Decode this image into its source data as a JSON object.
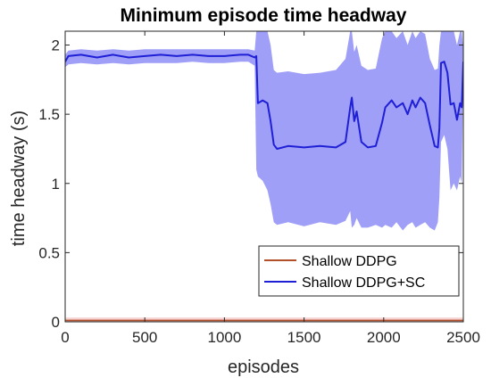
{
  "colors": {
    "series1": "#b1502a",
    "series1_band": "#f4c6c6",
    "series2": "#1f1fd6",
    "series2_band": "#7f7ff5",
    "axis": "#262626"
  },
  "chart_data": {
    "type": "line",
    "title": "Minimum episode time headway",
    "xlabel": "episodes",
    "ylabel": "time headway (s)",
    "xlim": [
      0,
      2500
    ],
    "ylim": [
      0,
      2.1
    ],
    "xticks": [
      0,
      500,
      1000,
      1500,
      2000,
      2500
    ],
    "xtick_labels": [
      "0",
      "500",
      "1000",
      "1500",
      "2000",
      "2500"
    ],
    "yticks": [
      0,
      0.5,
      1,
      1.5,
      2
    ],
    "ytick_labels": [
      "0",
      "0.5",
      "1",
      "1.5",
      "2"
    ],
    "grid": false,
    "legend_position": "lower-right",
    "series": [
      {
        "name": "Shallow DDPG",
        "x": [
          0,
          250,
          500,
          750,
          1000,
          1250,
          1500,
          1750,
          2000,
          2250,
          2500
        ],
        "values": [
          0.01,
          0.01,
          0.01,
          0.01,
          0.01,
          0.01,
          0.01,
          0.01,
          0.01,
          0.01,
          0.01
        ],
        "band_lower": [
          0.0,
          0.0,
          0.0,
          0.0,
          0.0,
          0.0,
          0.0,
          0.0,
          0.0,
          0.0,
          0.0
        ],
        "band_upper": [
          0.03,
          0.03,
          0.03,
          0.03,
          0.03,
          0.03,
          0.03,
          0.03,
          0.03,
          0.03,
          0.03
        ]
      },
      {
        "name": "Shallow DDPG+SC",
        "x": [
          0,
          20,
          100,
          200,
          300,
          400,
          500,
          600,
          700,
          800,
          900,
          1000,
          1100,
          1150,
          1190,
          1200,
          1210,
          1240,
          1270,
          1290,
          1310,
          1330,
          1400,
          1500,
          1600,
          1700,
          1760,
          1790,
          1800,
          1815,
          1830,
          1860,
          1900,
          1950,
          1990,
          2010,
          2050,
          2080,
          2120,
          2150,
          2180,
          2200,
          2230,
          2260,
          2290,
          2320,
          2340,
          2350,
          2360,
          2380,
          2400,
          2420,
          2440,
          2460,
          2480,
          2490,
          2500
        ],
        "values": [
          1.88,
          1.92,
          1.93,
          1.91,
          1.93,
          1.91,
          1.92,
          1.93,
          1.92,
          1.93,
          1.92,
          1.92,
          1.93,
          1.93,
          1.91,
          1.92,
          1.58,
          1.6,
          1.58,
          1.45,
          1.28,
          1.25,
          1.27,
          1.26,
          1.27,
          1.26,
          1.3,
          1.55,
          1.62,
          1.45,
          1.52,
          1.3,
          1.26,
          1.27,
          1.44,
          1.55,
          1.6,
          1.55,
          1.58,
          1.5,
          1.6,
          1.55,
          1.62,
          1.58,
          1.42,
          1.27,
          1.26,
          1.4,
          1.87,
          1.88,
          1.8,
          1.57,
          1.58,
          1.46,
          1.58,
          1.55,
          1.88
        ],
        "band_lower": [
          1.84,
          1.86,
          1.87,
          1.86,
          1.87,
          1.86,
          1.87,
          1.87,
          1.87,
          1.88,
          1.87,
          1.87,
          1.88,
          1.88,
          1.85,
          1.1,
          1.05,
          1.02,
          0.95,
          0.85,
          0.72,
          0.7,
          0.72,
          0.69,
          0.72,
          0.7,
          0.73,
          0.8,
          0.68,
          0.7,
          0.75,
          0.68,
          0.68,
          0.7,
          0.68,
          0.7,
          0.68,
          0.72,
          0.66,
          0.7,
          0.72,
          0.68,
          0.7,
          0.72,
          0.68,
          0.66,
          0.72,
          0.9,
          1.3,
          1.35,
          1.25,
          0.95,
          1.0,
          0.95,
          1.05,
          1.0,
          1.85
        ],
        "band_upper": [
          1.93,
          1.96,
          1.97,
          1.96,
          1.97,
          1.96,
          1.97,
          1.97,
          1.97,
          1.97,
          1.97,
          1.97,
          1.97,
          1.97,
          1.96,
          2.1,
          2.1,
          2.1,
          2.1,
          2.0,
          1.82,
          1.8,
          1.81,
          1.79,
          1.8,
          1.82,
          1.9,
          2.1,
          2.1,
          1.95,
          2.0,
          1.85,
          1.82,
          1.83,
          2.05,
          2.1,
          2.1,
          2.05,
          2.1,
          2.0,
          2.1,
          2.05,
          2.1,
          2.08,
          1.9,
          1.82,
          1.83,
          2.0,
          2.1,
          2.1,
          2.1,
          2.1,
          2.1,
          2.0,
          2.1,
          2.1,
          1.96
        ]
      }
    ]
  }
}
